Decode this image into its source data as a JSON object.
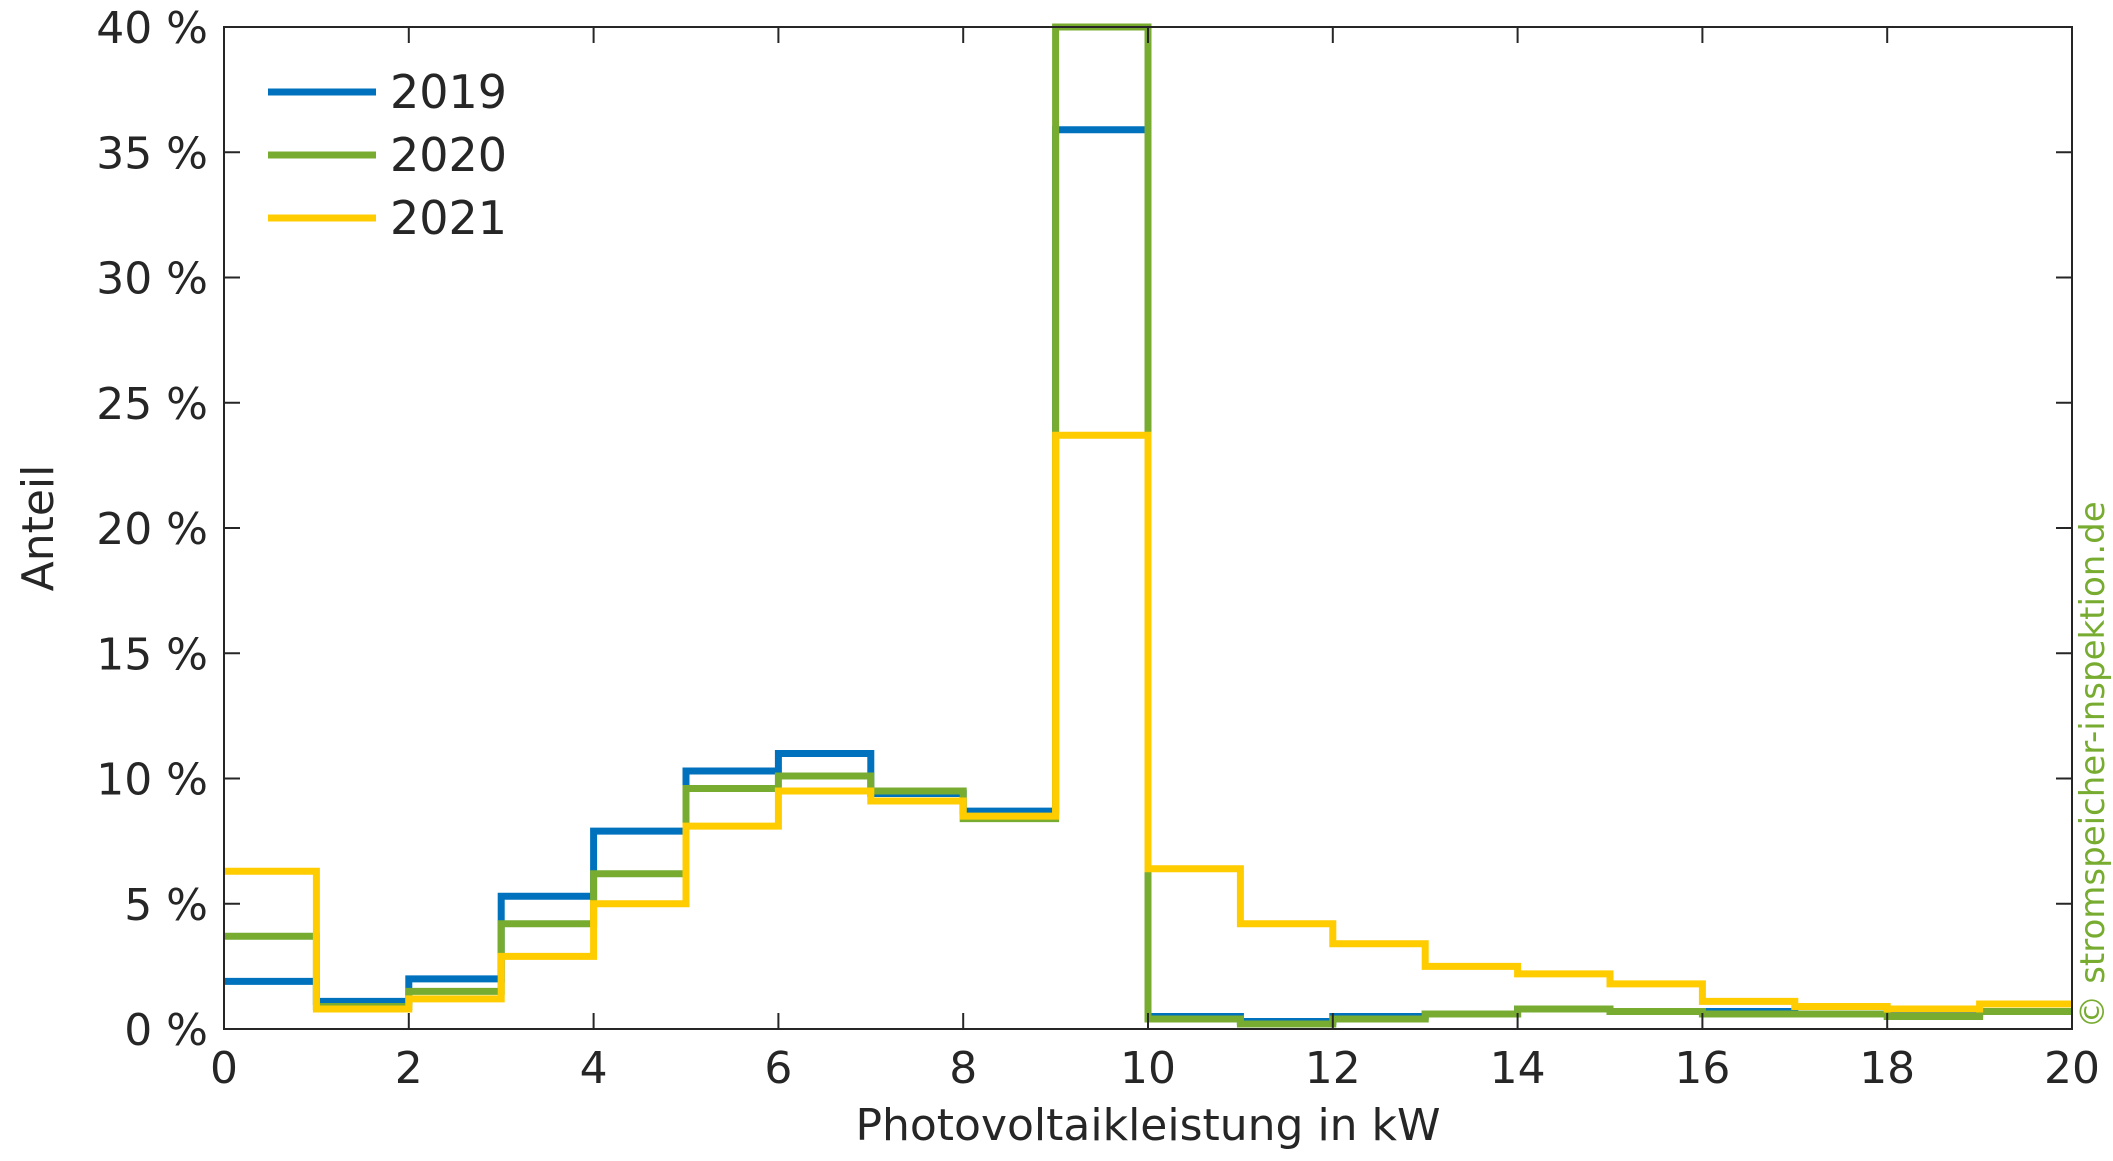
{
  "chart_data": {
    "type": "line",
    "step": true,
    "xlabel": "Photovoltaikleistung in kW",
    "ylabel": "Anteil",
    "xlim": [
      0,
      20
    ],
    "ylim": [
      0,
      40
    ],
    "x_ticks": [
      0,
      2,
      4,
      6,
      8,
      10,
      12,
      14,
      16,
      18,
      20
    ],
    "x_tick_labels": [
      "0",
      "2",
      "4",
      "6",
      "8",
      "10",
      "12",
      "14",
      "16",
      "18",
      "20"
    ],
    "y_ticks": [
      0,
      5,
      10,
      15,
      20,
      25,
      30,
      35,
      40
    ],
    "y_tick_labels": [
      "0 %",
      "5 %",
      "10 %",
      "15 %",
      "20 %",
      "25 %",
      "30 %",
      "35 %",
      "40 %"
    ],
    "bin_edges": [
      0,
      1,
      2,
      3,
      4,
      5,
      6,
      7,
      8,
      9,
      10,
      11,
      12,
      13,
      14,
      15,
      16,
      17,
      18,
      19,
      20
    ],
    "grid": false,
    "legend_position": "top-left",
    "series": [
      {
        "name": "2019",
        "color": "#0072BD",
        "values": [
          1.9,
          1.1,
          2.0,
          5.3,
          7.9,
          10.3,
          11.0,
          9.4,
          8.7,
          35.9,
          0.5,
          0.3,
          0.5,
          0.6,
          0.8,
          0.7,
          0.7,
          0.6,
          0.6,
          0.7
        ]
      },
      {
        "name": "2020",
        "color": "#77AC30",
        "values": [
          3.7,
          0.9,
          1.5,
          4.2,
          6.2,
          9.6,
          10.1,
          9.5,
          8.4,
          40.0,
          0.4,
          0.2,
          0.4,
          0.6,
          0.8,
          0.7,
          0.6,
          0.6,
          0.5,
          0.7
        ]
      },
      {
        "name": "2021",
        "color": "#FFCC00",
        "values": [
          6.3,
          0.8,
          1.2,
          2.9,
          5.0,
          8.1,
          9.5,
          9.1,
          8.5,
          23.7,
          6.4,
          4.2,
          3.4,
          2.5,
          2.2,
          1.8,
          1.1,
          0.9,
          0.8,
          1.0
        ]
      }
    ]
  },
  "watermark": {
    "text": "© stromspeicher-inspektion.de",
    "color": "#77AC30"
  }
}
